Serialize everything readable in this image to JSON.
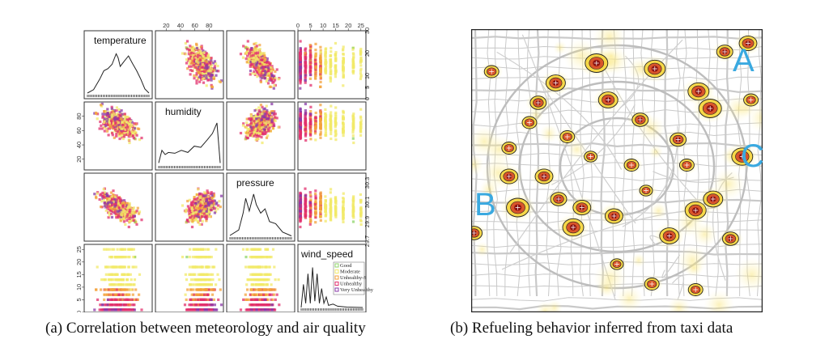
{
  "captions": {
    "a": "(a) Correlation between meteorology and air quality",
    "b": "(b) Refueling behavior inferred from taxi data"
  },
  "colors": {
    "Good": "#8fd46a",
    "Moderate": "#f2e96a",
    "Unhealthy-S": "#f3a23a",
    "Unhealthy": "#e2306e",
    "Very Unhealthy": "#8a3aa8",
    "map_label": "#3aa9e0",
    "hotspot_core": "#8b1010",
    "hotspot_mid": "#d9552a",
    "hotspot_outer": "#f7d848"
  },
  "chart_data": [
    {
      "type": "scatter",
      "subtype": "scatterplot-matrix",
      "variables": [
        "temperature",
        "humidity",
        "pressure",
        "wind_speed"
      ],
      "ranges": {
        "temperature": [
          0,
          30
        ],
        "humidity": [
          5,
          100
        ],
        "pressure": [
          29.7,
          30.4
        ],
        "wind_speed": [
          0,
          27
        ]
      },
      "ticks": {
        "temperature": [
          "0",
          "5",
          "10",
          "15",
          "20",
          "25",
          "30"
        ],
        "humidity": [
          "20",
          "40",
          "60",
          "80"
        ],
        "humidity_left": [
          "20",
          "40",
          "60",
          "80"
        ],
        "pressure": [
          "29.7",
          "29.9",
          "30.1",
          "30.3"
        ],
        "wind_speed": [
          "0",
          "5",
          "10",
          "15",
          "20",
          "25"
        ],
        "temperature_right": [
          "0",
          "5",
          "10",
          "20",
          "30"
        ],
        "pressure_right": [
          "29.7",
          "29.9",
          "30.1",
          "30.3"
        ]
      },
      "legend": {
        "position": "inside wind_speed diagonal panel",
        "entries": [
          "Good",
          "Moderate",
          "Unhealthy-S",
          "Unhealthy",
          "Very Unhealthy"
        ]
      },
      "density_curves": {
        "temperature": [
          [
            0,
            0.02
          ],
          [
            3,
            0.1
          ],
          [
            6,
            0.35
          ],
          [
            8,
            0.55
          ],
          [
            10,
            0.6
          ],
          [
            12,
            0.7
          ],
          [
            14,
            0.95
          ],
          [
            15,
            0.85
          ],
          [
            16,
            0.65
          ],
          [
            18,
            0.78
          ],
          [
            20,
            0.9
          ],
          [
            22,
            0.72
          ],
          [
            24,
            0.55
          ],
          [
            26,
            0.35
          ],
          [
            28,
            0.12
          ],
          [
            30,
            0.02
          ]
        ],
        "humidity": [
          [
            5,
            0.05
          ],
          [
            10,
            0.35
          ],
          [
            15,
            0.25
          ],
          [
            20,
            0.3
          ],
          [
            30,
            0.28
          ],
          [
            40,
            0.35
          ],
          [
            50,
            0.3
          ],
          [
            60,
            0.45
          ],
          [
            70,
            0.42
          ],
          [
            80,
            0.6
          ],
          [
            88,
            0.75
          ],
          [
            95,
            1.0
          ],
          [
            100,
            0.05
          ]
        ],
        "pressure": [
          [
            29.7,
            0.02
          ],
          [
            29.8,
            0.15
          ],
          [
            29.85,
            0.55
          ],
          [
            29.88,
            0.9
          ],
          [
            29.92,
            0.6
          ],
          [
            29.97,
            1.0
          ],
          [
            30.0,
            0.75
          ],
          [
            30.05,
            0.55
          ],
          [
            30.1,
            0.65
          ],
          [
            30.15,
            0.35
          ],
          [
            30.22,
            0.3
          ],
          [
            30.3,
            0.1
          ],
          [
            30.4,
            0.01
          ]
        ],
        "wind_speed": [
          [
            0,
            0.0
          ],
          [
            1,
            0.55
          ],
          [
            2,
            0.1
          ],
          [
            3,
            0.8
          ],
          [
            4,
            0.1
          ],
          [
            5,
            0.95
          ],
          [
            6,
            0.15
          ],
          [
            7,
            0.8
          ],
          [
            8,
            0.1
          ],
          [
            9,
            0.45
          ],
          [
            10,
            0.1
          ],
          [
            11,
            0.25
          ],
          [
            12,
            0.05
          ],
          [
            14,
            0.08
          ],
          [
            16,
            0.03
          ],
          [
            20,
            0.01
          ],
          [
            27,
            0.0
          ]
        ]
      }
    },
    {
      "type": "heatmap",
      "subtype": "density-map",
      "annotations": [
        "A",
        "B",
        "C"
      ],
      "hotspots": [
        {
          "x": 0.43,
          "y": 0.12,
          "w": 1.0
        },
        {
          "x": 0.63,
          "y": 0.14,
          "w": 0.9
        },
        {
          "x": 0.78,
          "y": 0.22,
          "w": 0.9
        },
        {
          "x": 0.82,
          "y": 0.28,
          "w": 1.0
        },
        {
          "x": 0.29,
          "y": 0.19,
          "w": 0.8
        },
        {
          "x": 0.23,
          "y": 0.26,
          "w": 0.6
        },
        {
          "x": 0.95,
          "y": 0.05,
          "w": 0.7
        },
        {
          "x": 0.87,
          "y": 0.08,
          "w": 0.6
        },
        {
          "x": 0.16,
          "y": 0.63,
          "w": 1.0
        },
        {
          "x": 0.13,
          "y": 0.52,
          "w": 0.7
        },
        {
          "x": 0.25,
          "y": 0.52,
          "w": 0.7
        },
        {
          "x": 0.47,
          "y": 0.25,
          "w": 0.8
        },
        {
          "x": 0.58,
          "y": 0.32,
          "w": 0.6
        },
        {
          "x": 0.71,
          "y": 0.39,
          "w": 0.6
        },
        {
          "x": 0.93,
          "y": 0.45,
          "w": 0.9
        },
        {
          "x": 0.77,
          "y": 0.64,
          "w": 0.9
        },
        {
          "x": 0.83,
          "y": 0.6,
          "w": 0.8
        },
        {
          "x": 0.68,
          "y": 0.73,
          "w": 0.8
        },
        {
          "x": 0.35,
          "y": 0.7,
          "w": 0.9
        },
        {
          "x": 0.38,
          "y": 0.63,
          "w": 0.7
        },
        {
          "x": 0.49,
          "y": 0.66,
          "w": 0.7
        },
        {
          "x": 0.3,
          "y": 0.6,
          "w": 0.6
        },
        {
          "x": 0.07,
          "y": 0.15,
          "w": 0.5
        },
        {
          "x": 0.01,
          "y": 0.72,
          "w": 0.6
        },
        {
          "x": 0.77,
          "y": 0.92,
          "w": 0.5
        },
        {
          "x": 0.62,
          "y": 0.9,
          "w": 0.5
        },
        {
          "x": 0.55,
          "y": 0.48,
          "w": 0.5
        },
        {
          "x": 0.33,
          "y": 0.38,
          "w": 0.5
        },
        {
          "x": 0.41,
          "y": 0.45,
          "w": 0.4
        },
        {
          "x": 0.96,
          "y": 0.25,
          "w": 0.5
        },
        {
          "x": 0.2,
          "y": 0.33,
          "w": 0.5
        },
        {
          "x": 0.5,
          "y": 0.83,
          "w": 0.4
        },
        {
          "x": 0.13,
          "y": 0.42,
          "w": 0.5
        },
        {
          "x": 0.89,
          "y": 0.74,
          "w": 0.6
        },
        {
          "x": 0.6,
          "y": 0.57,
          "w": 0.4
        },
        {
          "x": 0.74,
          "y": 0.48,
          "w": 0.5
        }
      ]
    }
  ]
}
